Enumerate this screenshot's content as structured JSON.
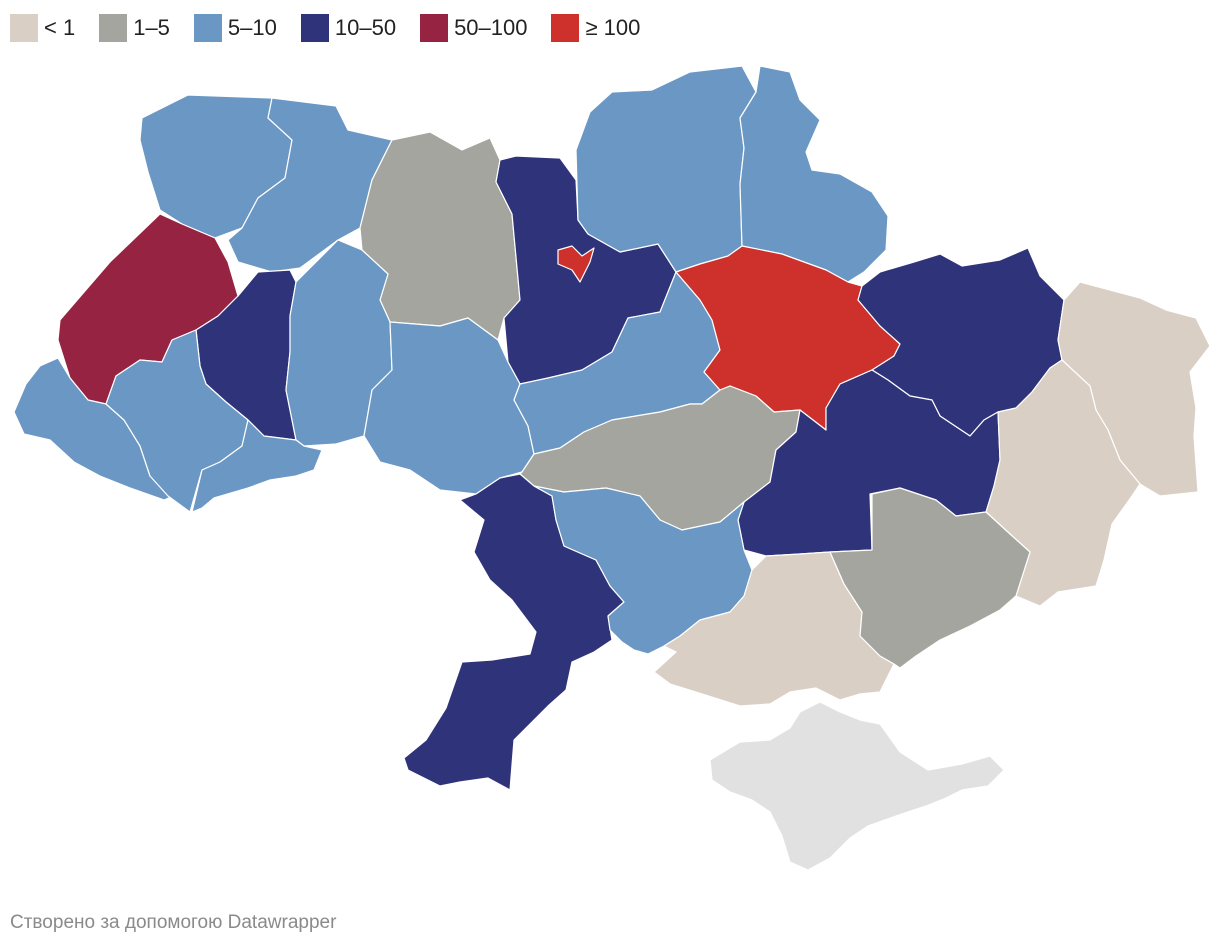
{
  "legend": {
    "items": [
      {
        "label": "< 1",
        "color": "#d9cfc5"
      },
      {
        "label": "1–5",
        "color": "#a5a59f"
      },
      {
        "label": "5–10",
        "color": "#6a97c3"
      },
      {
        "label": "10–50",
        "color": "#2f3379"
      },
      {
        "label": "50–100",
        "color": "#972342"
      },
      {
        "label": "≥ 100",
        "color": "#ce302b"
      }
    ]
  },
  "map": {
    "no_data_color": "#e1e1e1",
    "regions": [
      {
        "name": "region-volyn",
        "class": 2
      },
      {
        "name": "region-rivne",
        "class": 2
      },
      {
        "name": "region-zhytomyr",
        "class": 1
      },
      {
        "name": "region-kyiv-oblast",
        "class": 3
      },
      {
        "name": "region-kyiv-city",
        "class": 5
      },
      {
        "name": "region-chernihiv",
        "class": 2
      },
      {
        "name": "region-sumy",
        "class": 2
      },
      {
        "name": "region-lviv",
        "class": 4
      },
      {
        "name": "region-ternopil",
        "class": 3
      },
      {
        "name": "region-khmelnytskyi",
        "class": 2
      },
      {
        "name": "region-vinnytsia",
        "class": 2
      },
      {
        "name": "region-cherkasy",
        "class": 2
      },
      {
        "name": "region-poltava",
        "class": 5
      },
      {
        "name": "region-kharkiv",
        "class": 3
      },
      {
        "name": "region-luhansk",
        "class": 0
      },
      {
        "name": "region-zakarpattia",
        "class": 2
      },
      {
        "name": "region-ivano-frankivsk",
        "class": 2
      },
      {
        "name": "region-chernivtsi",
        "class": 2
      },
      {
        "name": "region-kirovohrad",
        "class": 1
      },
      {
        "name": "region-dnipropetrovsk",
        "class": 3
      },
      {
        "name": "region-donetsk",
        "class": 0
      },
      {
        "name": "region-odesa",
        "class": 3
      },
      {
        "name": "region-mykolaiv",
        "class": 2
      },
      {
        "name": "region-kherson",
        "class": 0
      },
      {
        "name": "region-zaporizhzhia",
        "class": 1
      },
      {
        "name": "region-crimea",
        "class": -1
      }
    ]
  },
  "footer": {
    "credit": "Створено за допомогою Datawrapper"
  }
}
